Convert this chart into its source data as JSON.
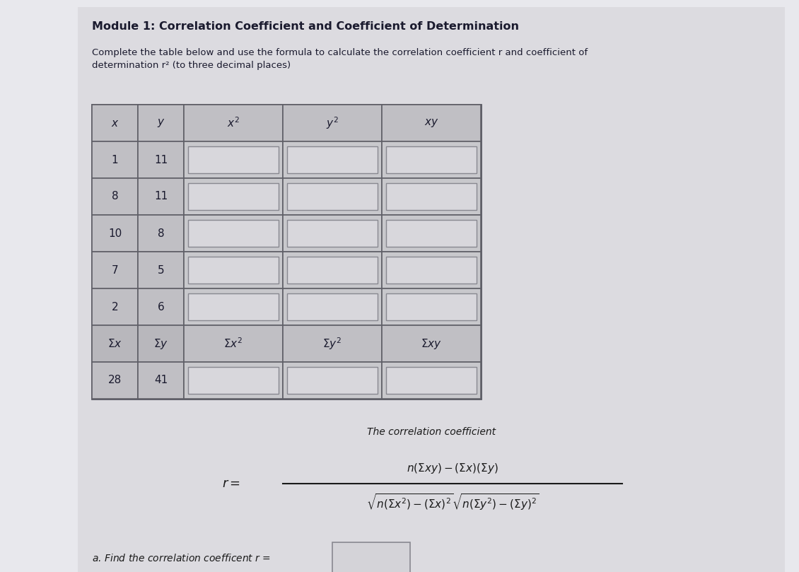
{
  "title": "Module 1: Correlation Coefficient and Coefficient of Determination",
  "subtitle": "Complete the table below and use the formula to calculate the correlation coefficient r and coefficient of\ndetermination r² (to three decimal places)",
  "table_headers_display": [
    "x",
    "y",
    "x^2",
    "y^2",
    "xy"
  ],
  "table_data": [
    [
      "1",
      "11"
    ],
    [
      "8",
      "11"
    ],
    [
      "10",
      "8"
    ],
    [
      "7",
      "5"
    ],
    [
      "2",
      "6"
    ]
  ],
  "sum_values_xy": [
    "28",
    "41"
  ],
  "bg_color": "#e8e8ed",
  "table_outer_bg": "#c8c8cc",
  "cell_input_color": "#e0dfe4",
  "cell_xy_color": "#c0bfc4",
  "header_bg": "#c0bfc4",
  "sum_row_bg": "#b8b7bc",
  "text_color": "#1a1a2e",
  "text_color_formula": "#1a1a1a",
  "font_size_title": 11.5,
  "font_size_subtitle": 9.5,
  "font_size_table": 10,
  "font_size_formula": 10
}
